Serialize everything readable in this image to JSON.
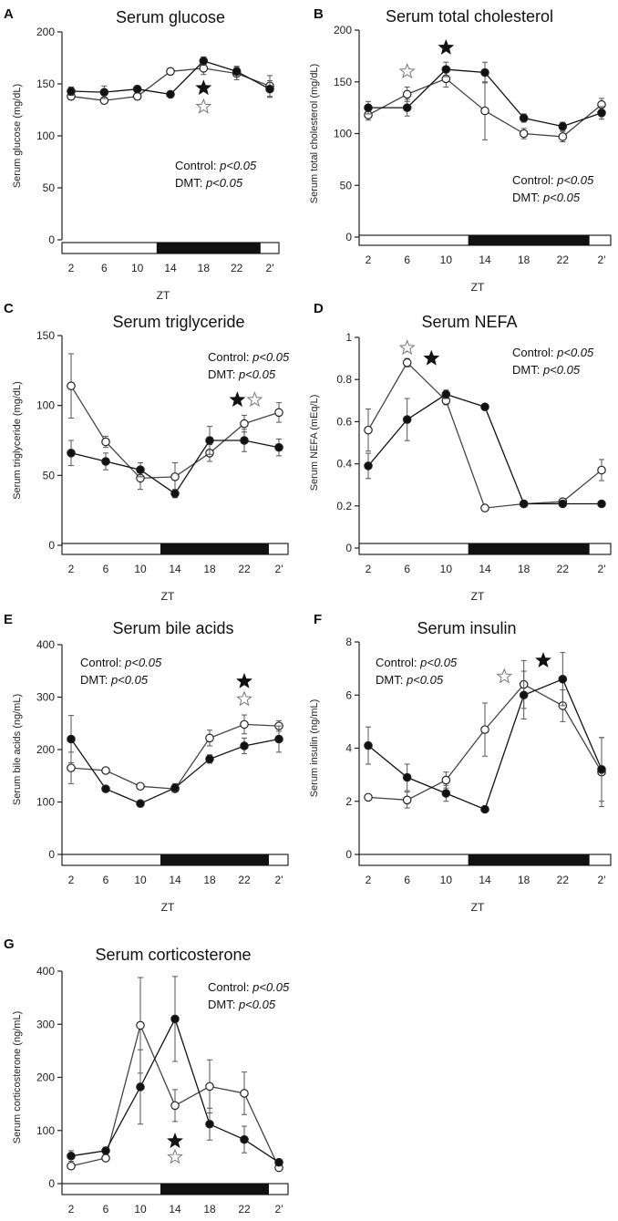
{
  "figure": {
    "xlabel": "ZT",
    "x_ticks": [
      "2",
      "6",
      "10",
      "14",
      "18",
      "22",
      "2'"
    ],
    "light_dark_bar": {
      "light_phase": "ZT0–12",
      "dark_phase": "ZT12–24"
    },
    "series_names": [
      "Control",
      "DMT"
    ]
  },
  "chart_data": [
    {
      "panel": "A",
      "type": "line",
      "title": "Serum glucose",
      "ylabel": "Serum glucose (mg/dL)",
      "ylim": [
        0,
        200
      ],
      "yticks": [
        0,
        50,
        100,
        150,
        200
      ],
      "x": [
        2,
        6,
        10,
        14,
        18,
        22,
        26
      ],
      "series": [
        {
          "name": "Control",
          "marker": "filled",
          "values": [
            143,
            142,
            145,
            140,
            172,
            162,
            145
          ],
          "errors": [
            4,
            6,
            3,
            3,
            4,
            5,
            8
          ]
        },
        {
          "name": "DMT",
          "marker": "open",
          "values": [
            138,
            134,
            138,
            162,
            165,
            160,
            148
          ],
          "errors": [
            3,
            3,
            3,
            3,
            6,
            6,
            10
          ]
        }
      ],
      "stats": [
        {
          "label": "Control:",
          "p": "p<0.05"
        },
        {
          "label": "DMT:",
          "p": "p<0.05"
        }
      ],
      "stars": [
        {
          "x": 18,
          "y": 146,
          "kind": "filled"
        },
        {
          "x": 18,
          "y": 128,
          "kind": "open"
        }
      ]
    },
    {
      "panel": "B",
      "type": "line",
      "title": "Serum total cholesterol",
      "ylabel": "Serum total cholesterol (mg/dL)",
      "ylim": [
        0,
        200
      ],
      "yticks": [
        0,
        50,
        100,
        150,
        200
      ],
      "x": [
        2,
        6,
        10,
        14,
        18,
        22,
        26
      ],
      "series": [
        {
          "name": "Control",
          "marker": "filled",
          "values": [
            125,
            125,
            162,
            159,
            115,
            107,
            120
          ],
          "errors": [
            6,
            8,
            7,
            10,
            4,
            4,
            6
          ]
        },
        {
          "name": "DMT",
          "marker": "open",
          "values": [
            118,
            138,
            153,
            122,
            100,
            97,
            128
          ],
          "errors": [
            5,
            7,
            8,
            28,
            5,
            5,
            6
          ]
        }
      ],
      "stats": [
        {
          "label": "Control:",
          "p": "p<0.05"
        },
        {
          "label": "DMT:",
          "p": "p<0.05"
        }
      ],
      "stars": [
        {
          "x": 6,
          "y": 160,
          "kind": "open"
        },
        {
          "x": 10,
          "y": 183,
          "kind": "filled"
        }
      ]
    },
    {
      "panel": "C",
      "type": "line",
      "title": "Serum triglyceride",
      "ylabel": "Serum triglyceride (mg/dL)",
      "ylim": [
        0,
        150
      ],
      "yticks": [
        0,
        50,
        100,
        150
      ],
      "x": [
        2,
        6,
        10,
        14,
        18,
        22,
        26
      ],
      "series": [
        {
          "name": "Control",
          "marker": "filled",
          "values": [
            66,
            60,
            54,
            37,
            75,
            75,
            70
          ],
          "errors": [
            9,
            6,
            5,
            3,
            10,
            8,
            6
          ]
        },
        {
          "name": "DMT",
          "marker": "open",
          "values": [
            114,
            74,
            48,
            49,
            66,
            87,
            95
          ],
          "errors": [
            23,
            4,
            8,
            10,
            6,
            6,
            7
          ]
        }
      ],
      "stats": [
        {
          "label": "Control:",
          "p": "p<0.05"
        },
        {
          "label": "DMT:",
          "p": "p<0.05"
        }
      ],
      "stars": [
        {
          "x": 21.2,
          "y": 104,
          "kind": "filled"
        },
        {
          "x": 23.2,
          "y": 104,
          "kind": "open"
        }
      ]
    },
    {
      "panel": "D",
      "type": "line",
      "title": "Serum NEFA",
      "ylabel": "Serum NEFA (mEq/L)",
      "ylim": [
        0,
        1
      ],
      "yticks": [
        0,
        0.2,
        0.4,
        0.6,
        0.8,
        1
      ],
      "x": [
        2,
        6,
        10,
        14,
        18,
        22,
        26
      ],
      "series": [
        {
          "name": "Control",
          "marker": "filled",
          "values": [
            0.39,
            0.61,
            0.73,
            0.67,
            0.21,
            0.21,
            0.21
          ],
          "errors": [
            0.06,
            0.1,
            0.02,
            0.01,
            0.01,
            0.01,
            0.01
          ]
        },
        {
          "name": "DMT",
          "marker": "open",
          "values": [
            0.56,
            0.88,
            0.7,
            0.19,
            0.21,
            0.22,
            0.37
          ],
          "errors": [
            0.1,
            0.02,
            0.02,
            0.01,
            0.01,
            0.01,
            0.05
          ]
        }
      ],
      "stats": [
        {
          "label": "Control:",
          "p": "p<0.05"
        },
        {
          "label": "DMT:",
          "p": "p<0.05"
        }
      ],
      "stars": [
        {
          "x": 6,
          "y": 0.95,
          "kind": "open"
        },
        {
          "x": 8.5,
          "y": 0.9,
          "kind": "filled"
        }
      ]
    },
    {
      "panel": "E",
      "type": "line",
      "title": "Serum bile acids",
      "ylabel": "Serum bile acids  (ng/mL)",
      "ylim": [
        0,
        400
      ],
      "yticks": [
        0,
        100,
        200,
        300,
        400
      ],
      "x": [
        2,
        6,
        10,
        14,
        18,
        22,
        26
      ],
      "series": [
        {
          "name": "Control",
          "marker": "filled",
          "values": [
            220,
            125,
            97,
            127,
            182,
            207,
            220
          ],
          "errors": [
            45,
            5,
            5,
            8,
            8,
            15,
            25
          ]
        },
        {
          "name": "DMT",
          "marker": "open",
          "values": [
            165,
            160,
            130,
            125,
            222,
            248,
            245
          ],
          "errors": [
            30,
            5,
            5,
            5,
            15,
            18,
            10
          ]
        }
      ],
      "stats": [
        {
          "label": "Control:",
          "p": "p<0.05"
        },
        {
          "label": "DMT:",
          "p": "p<0.05"
        }
      ],
      "stars": [
        {
          "x": 22,
          "y": 330,
          "kind": "filled"
        },
        {
          "x": 22,
          "y": 296,
          "kind": "open"
        }
      ]
    },
    {
      "panel": "F",
      "type": "line",
      "title": "Serum insulin",
      "ylabel": "Serum insulin (ng/mL)",
      "ylim": [
        0,
        8
      ],
      "yticks": [
        0,
        2,
        4,
        6,
        8
      ],
      "x": [
        2,
        6,
        10,
        14,
        18,
        22,
        26
      ],
      "series": [
        {
          "name": "Control",
          "marker": "filled",
          "values": [
            4.1,
            2.9,
            2.3,
            1.7,
            6.0,
            6.6,
            3.2
          ],
          "errors": [
            0.7,
            0.5,
            0.3,
            0.1,
            0.9,
            1.0,
            1.2
          ]
        },
        {
          "name": "DMT",
          "marker": "open",
          "values": [
            2.15,
            2.05,
            2.8,
            4.7,
            6.4,
            5.6,
            3.1
          ],
          "errors": [
            0.1,
            0.3,
            0.3,
            1.0,
            0.9,
            0.6,
            1.3
          ]
        }
      ],
      "stats": [
        {
          "label": "Control:",
          "p": "p<0.05"
        },
        {
          "label": "DMT:",
          "p": "p<0.05"
        }
      ],
      "stars": [
        {
          "x": 16,
          "y": 6.7,
          "kind": "open"
        },
        {
          "x": 20,
          "y": 7.3,
          "kind": "filled"
        }
      ]
    },
    {
      "panel": "G",
      "type": "line",
      "title": "Serum corticosterone",
      "ylabel": "Serum corticosterone  (ng/mL)",
      "ylim": [
        0,
        400
      ],
      "yticks": [
        0,
        100,
        200,
        300,
        400
      ],
      "x": [
        2,
        6,
        10,
        14,
        18,
        22,
        26
      ],
      "series": [
        {
          "name": "Control",
          "marker": "filled",
          "values": [
            52,
            62,
            182,
            310,
            112,
            83,
            40
          ],
          "errors": [
            10,
            6,
            70,
            80,
            30,
            25,
            5
          ]
        },
        {
          "name": "DMT",
          "marker": "open",
          "values": [
            33,
            48,
            298,
            147,
            183,
            170,
            30
          ],
          "errors": [
            5,
            5,
            90,
            30,
            50,
            40,
            5
          ]
        }
      ],
      "stats": [
        {
          "label": "Control:",
          "p": "p<0.05"
        },
        {
          "label": "DMT:",
          "p": "p<0.05"
        }
      ],
      "stars": [
        {
          "x": 14,
          "y": 80,
          "kind": "filled"
        },
        {
          "x": 14,
          "y": 50,
          "kind": "open"
        }
      ]
    }
  ]
}
